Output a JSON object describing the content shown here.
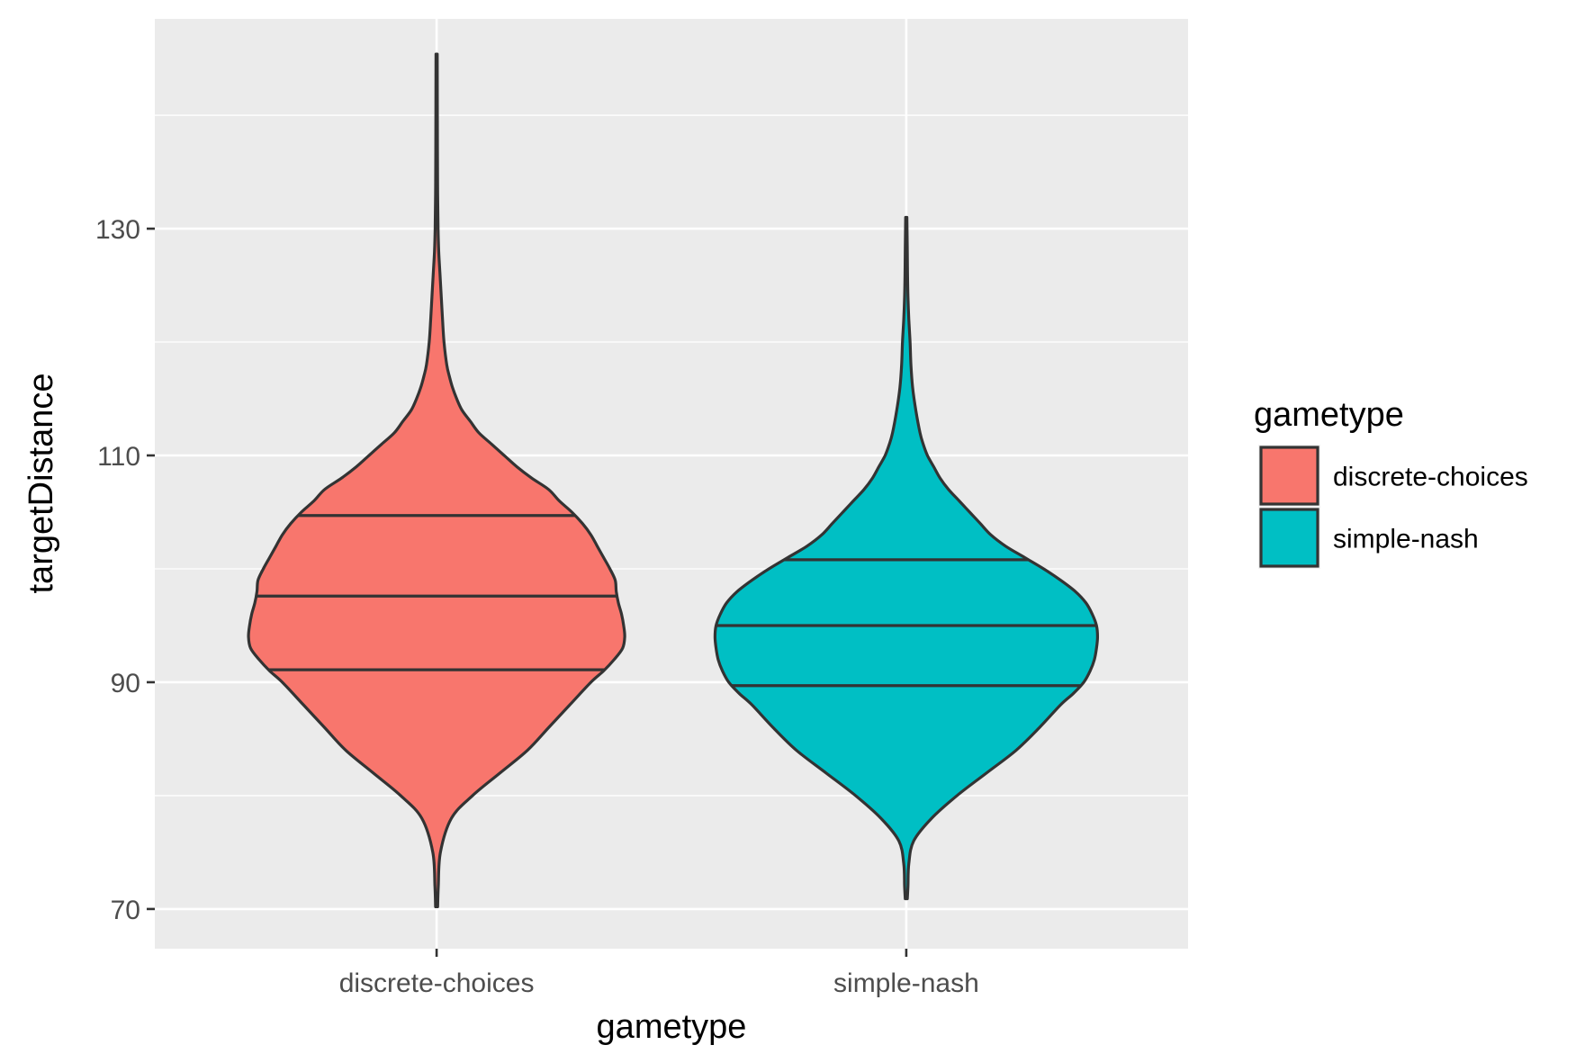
{
  "chart_data": {
    "type": "violin",
    "xlabel": "gametype",
    "ylabel": "targetDistance",
    "categories": [
      "discrete-choices",
      "simple-nash"
    ],
    "ylim": [
      66.5,
      148.5
    ],
    "y_ticks": [
      70,
      90,
      110,
      130
    ],
    "grid": true,
    "legend": {
      "title": "gametype",
      "position": "right",
      "entries": [
        "discrete-choices",
        "simple-nash"
      ]
    },
    "series": [
      {
        "category": "discrete-choices",
        "color": "#F8766D",
        "min": 70.2,
        "max": 145.4,
        "quantiles": [
          91.1,
          97.6,
          104.7
        ],
        "profile": [
          [
            70.2,
            0.005
          ],
          [
            72,
            0.008
          ],
          [
            75,
            0.018
          ],
          [
            78,
            0.07
          ],
          [
            80,
            0.17
          ],
          [
            82,
            0.3
          ],
          [
            84,
            0.43
          ],
          [
            86,
            0.53
          ],
          [
            88,
            0.63
          ],
          [
            90,
            0.73
          ],
          [
            91,
            0.79
          ],
          [
            92,
            0.84
          ],
          [
            93,
            0.88
          ],
          [
            94,
            0.89
          ],
          [
            95,
            0.885
          ],
          [
            96,
            0.875
          ],
          [
            97,
            0.86
          ],
          [
            98,
            0.85
          ],
          [
            99,
            0.845
          ],
          [
            100,
            0.82
          ],
          [
            101,
            0.79
          ],
          [
            102,
            0.76
          ],
          [
            103,
            0.73
          ],
          [
            104,
            0.69
          ],
          [
            105,
            0.64
          ],
          [
            106,
            0.58
          ],
          [
            107,
            0.53
          ],
          [
            108,
            0.45
          ],
          [
            109,
            0.38
          ],
          [
            110,
            0.32
          ],
          [
            111,
            0.26
          ],
          [
            112,
            0.2
          ],
          [
            113,
            0.16
          ],
          [
            114,
            0.12
          ],
          [
            115,
            0.095
          ],
          [
            116,
            0.075
          ],
          [
            117,
            0.06
          ],
          [
            118,
            0.048
          ],
          [
            120,
            0.035
          ],
          [
            122,
            0.028
          ],
          [
            124,
            0.022
          ],
          [
            126,
            0.016
          ],
          [
            128,
            0.01
          ],
          [
            130,
            0.007
          ],
          [
            133,
            0.005
          ],
          [
            137,
            0.004
          ],
          [
            145.4,
            0.003
          ]
        ]
      },
      {
        "category": "simple-nash",
        "color": "#00BFC4",
        "min": 70.9,
        "max": 131.0,
        "quantiles": [
          89.7,
          95.0,
          100.8
        ],
        "profile": [
          [
            70.9,
            0.005
          ],
          [
            72,
            0.008
          ],
          [
            74,
            0.012
          ],
          [
            76,
            0.035
          ],
          [
            78,
            0.12
          ],
          [
            80,
            0.24
          ],
          [
            82,
            0.38
          ],
          [
            84,
            0.52
          ],
          [
            86,
            0.63
          ],
          [
            88,
            0.73
          ],
          [
            89,
            0.79
          ],
          [
            90,
            0.84
          ],
          [
            91,
            0.87
          ],
          [
            92,
            0.89
          ],
          [
            93,
            0.9
          ],
          [
            94,
            0.905
          ],
          [
            95,
            0.9
          ],
          [
            96,
            0.88
          ],
          [
            97,
            0.85
          ],
          [
            98,
            0.8
          ],
          [
            99,
            0.73
          ],
          [
            100,
            0.65
          ],
          [
            101,
            0.56
          ],
          [
            102,
            0.47
          ],
          [
            103,
            0.4
          ],
          [
            104,
            0.35
          ],
          [
            105,
            0.3
          ],
          [
            106,
            0.25
          ],
          [
            107,
            0.2
          ],
          [
            108,
            0.16
          ],
          [
            109,
            0.13
          ],
          [
            110,
            0.1
          ],
          [
            111,
            0.08
          ],
          [
            112,
            0.065
          ],
          [
            114,
            0.045
          ],
          [
            116,
            0.03
          ],
          [
            118,
            0.022
          ],
          [
            120,
            0.018
          ],
          [
            122,
            0.012
          ],
          [
            124,
            0.008
          ],
          [
            126,
            0.006
          ],
          [
            128,
            0.005
          ],
          [
            131,
            0.003
          ]
        ]
      }
    ]
  }
}
